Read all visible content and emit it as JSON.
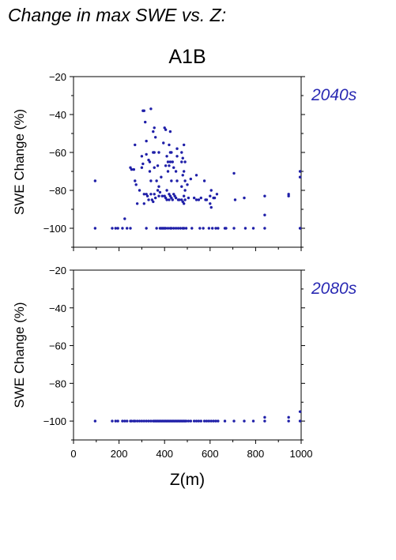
{
  "page_title": "Change in max SWE vs. Z:",
  "scenario": "A1B",
  "colors": {
    "points": "#1f1fa8",
    "period_label": "#2a2ab3",
    "axes": "#000000"
  },
  "chart_data": [
    {
      "type": "scatter",
      "period_label": "2040s",
      "xlabel": "",
      "ylabel": "SWE Change (%)",
      "xlim": [
        0,
        1000
      ],
      "ylim": [
        -110,
        -20
      ],
      "xticks": [
        0,
        200,
        400,
        600,
        800,
        1000
      ],
      "yticks": [
        -100,
        -80,
        -60,
        -40,
        -20
      ],
      "x_tick_labels_shown": false,
      "grid": false,
      "points": [
        [
          95,
          -100
        ],
        [
          95,
          -75
        ],
        [
          170,
          -100
        ],
        [
          185,
          -100
        ],
        [
          195,
          -100
        ],
        [
          215,
          -100
        ],
        [
          225,
          -95
        ],
        [
          235,
          -100
        ],
        [
          250,
          -100
        ],
        [
          250,
          -68
        ],
        [
          255,
          -69
        ],
        [
          265,
          -69
        ],
        [
          270,
          -56
        ],
        [
          270,
          -75
        ],
        [
          275,
          -77
        ],
        [
          280,
          -87
        ],
        [
          290,
          -80
        ],
        [
          300,
          -62
        ],
        [
          300,
          -68
        ],
        [
          305,
          -38
        ],
        [
          305,
          -66
        ],
        [
          310,
          -38
        ],
        [
          310,
          -82
        ],
        [
          310,
          -87
        ],
        [
          315,
          -44
        ],
        [
          320,
          -54
        ],
        [
          320,
          -61
        ],
        [
          320,
          -82
        ],
        [
          320,
          -100
        ],
        [
          325,
          -83
        ],
        [
          330,
          -64
        ],
        [
          330,
          -85
        ],
        [
          335,
          -65
        ],
        [
          335,
          -70
        ],
        [
          340,
          -37
        ],
        [
          340,
          -75
        ],
        [
          340,
          -82
        ],
        [
          345,
          -85
        ],
        [
          350,
          -49
        ],
        [
          350,
          -60
        ],
        [
          350,
          -86
        ],
        [
          355,
          -47
        ],
        [
          355,
          -60
        ],
        [
          355,
          -68
        ],
        [
          355,
          -82
        ],
        [
          360,
          -52
        ],
        [
          360,
          -84
        ],
        [
          365,
          -75
        ],
        [
          365,
          -100
        ],
        [
          370,
          -67
        ],
        [
          370,
          -80
        ],
        [
          375,
          -60
        ],
        [
          375,
          -78
        ],
        [
          375,
          -83
        ],
        [
          380,
          -81
        ],
        [
          380,
          -100
        ],
        [
          385,
          -73
        ],
        [
          385,
          -100
        ],
        [
          390,
          -83
        ],
        [
          390,
          -100
        ],
        [
          395,
          -55
        ],
        [
          395,
          -100
        ],
        [
          400,
          -47
        ],
        [
          400,
          -83
        ],
        [
          400,
          -100
        ],
        [
          405,
          -48
        ],
        [
          405,
          -67
        ],
        [
          405,
          -84
        ],
        [
          405,
          -100
        ],
        [
          410,
          -62
        ],
        [
          410,
          -80
        ],
        [
          410,
          -85
        ],
        [
          415,
          -65
        ],
        [
          415,
          -70
        ],
        [
          415,
          -100
        ],
        [
          420,
          -56
        ],
        [
          420,
          -67
        ],
        [
          420,
          -82
        ],
        [
          420,
          -85
        ],
        [
          425,
          -49
        ],
        [
          425,
          -60
        ],
        [
          425,
          -65
        ],
        [
          425,
          -83
        ],
        [
          425,
          -100
        ],
        [
          430,
          -60
        ],
        [
          430,
          -75
        ],
        [
          430,
          -84
        ],
        [
          430,
          -100
        ],
        [
          435,
          -65
        ],
        [
          435,
          -85
        ],
        [
          440,
          -68
        ],
        [
          440,
          -82
        ],
        [
          440,
          -100
        ],
        [
          445,
          -83
        ],
        [
          450,
          -70
        ],
        [
          450,
          -84
        ],
        [
          450,
          -100
        ],
        [
          455,
          -58
        ],
        [
          455,
          -62
        ],
        [
          455,
          -75
        ],
        [
          460,
          -85
        ],
        [
          460,
          -100
        ],
        [
          465,
          -85
        ],
        [
          470,
          -100
        ],
        [
          475,
          -60
        ],
        [
          475,
          -65
        ],
        [
          475,
          -78
        ],
        [
          475,
          -85
        ],
        [
          480,
          -63
        ],
        [
          480,
          -72
        ],
        [
          480,
          -86
        ],
        [
          480,
          -100
        ],
        [
          485,
          -56
        ],
        [
          485,
          -70
        ],
        [
          485,
          -83
        ],
        [
          485,
          -87
        ],
        [
          485,
          -100
        ],
        [
          490,
          -65
        ],
        [
          490,
          -75
        ],
        [
          490,
          -80
        ],
        [
          490,
          -85
        ],
        [
          495,
          -100
        ],
        [
          500,
          -77
        ],
        [
          505,
          -84
        ],
        [
          515,
          -74
        ],
        [
          520,
          -100
        ],
        [
          530,
          -84
        ],
        [
          540,
          -72
        ],
        [
          540,
          -85
        ],
        [
          550,
          -85
        ],
        [
          555,
          -100
        ],
        [
          560,
          -84
        ],
        [
          570,
          -100
        ],
        [
          575,
          -75
        ],
        [
          580,
          -85
        ],
        [
          585,
          -85
        ],
        [
          595,
          -100
        ],
        [
          600,
          -83
        ],
        [
          600,
          -87
        ],
        [
          605,
          -80
        ],
        [
          605,
          -89
        ],
        [
          610,
          -100
        ],
        [
          615,
          -84
        ],
        [
          620,
          -84
        ],
        [
          625,
          -100
        ],
        [
          630,
          -82
        ],
        [
          635,
          -100
        ],
        [
          665,
          -100
        ],
        [
          670,
          -100
        ],
        [
          705,
          -100
        ],
        [
          705,
          -71
        ],
        [
          710,
          -85
        ],
        [
          750,
          -84
        ],
        [
          755,
          -100
        ],
        [
          790,
          -100
        ],
        [
          840,
          -100
        ],
        [
          840,
          -93
        ],
        [
          840,
          -83
        ],
        [
          945,
          -82
        ],
        [
          945,
          -83
        ],
        [
          995,
          -100
        ],
        [
          995,
          -70
        ],
        [
          995,
          -73
        ]
      ]
    },
    {
      "type": "scatter",
      "period_label": "2080s",
      "xlabel": "Z(m)",
      "ylabel": "SWE Change (%)",
      "xlim": [
        0,
        1000
      ],
      "ylim": [
        -110,
        -20
      ],
      "xticks": [
        0,
        200,
        400,
        600,
        800,
        1000
      ],
      "yticks": [
        -100,
        -80,
        -60,
        -40,
        -20
      ],
      "x_tick_labels_shown": true,
      "grid": false,
      "points": [
        [
          95,
          -100
        ],
        [
          170,
          -100
        ],
        [
          185,
          -100
        ],
        [
          195,
          -100
        ],
        [
          215,
          -100
        ],
        [
          225,
          -100
        ],
        [
          235,
          -100
        ],
        [
          250,
          -100
        ],
        [
          255,
          -100
        ],
        [
          265,
          -100
        ],
        [
          270,
          -100
        ],
        [
          280,
          -100
        ],
        [
          290,
          -100
        ],
        [
          300,
          -100
        ],
        [
          310,
          -100
        ],
        [
          320,
          -100
        ],
        [
          330,
          -100
        ],
        [
          340,
          -100
        ],
        [
          350,
          -100
        ],
        [
          355,
          -100
        ],
        [
          360,
          -100
        ],
        [
          365,
          -100
        ],
        [
          370,
          -100
        ],
        [
          375,
          -100
        ],
        [
          380,
          -100
        ],
        [
          385,
          -100
        ],
        [
          390,
          -100
        ],
        [
          395,
          -100
        ],
        [
          400,
          -100
        ],
        [
          405,
          -100
        ],
        [
          410,
          -100
        ],
        [
          415,
          -100
        ],
        [
          420,
          -100
        ],
        [
          425,
          -100
        ],
        [
          430,
          -100
        ],
        [
          435,
          -100
        ],
        [
          440,
          -100
        ],
        [
          445,
          -100
        ],
        [
          450,
          -100
        ],
        [
          455,
          -100
        ],
        [
          460,
          -100
        ],
        [
          465,
          -100
        ],
        [
          470,
          -100
        ],
        [
          475,
          -100
        ],
        [
          480,
          -100
        ],
        [
          485,
          -100
        ],
        [
          490,
          -100
        ],
        [
          495,
          -100
        ],
        [
          505,
          -100
        ],
        [
          515,
          -100
        ],
        [
          530,
          -100
        ],
        [
          540,
          -100
        ],
        [
          550,
          -100
        ],
        [
          560,
          -100
        ],
        [
          575,
          -100
        ],
        [
          585,
          -100
        ],
        [
          595,
          -100
        ],
        [
          605,
          -100
        ],
        [
          615,
          -100
        ],
        [
          625,
          -100
        ],
        [
          635,
          -100
        ],
        [
          665,
          -100
        ],
        [
          705,
          -100
        ],
        [
          750,
          -100
        ],
        [
          790,
          -100
        ],
        [
          840,
          -100
        ],
        [
          840,
          -98
        ],
        [
          945,
          -100
        ],
        [
          945,
          -98
        ],
        [
          995,
          -100
        ],
        [
          995,
          -95
        ]
      ]
    }
  ]
}
